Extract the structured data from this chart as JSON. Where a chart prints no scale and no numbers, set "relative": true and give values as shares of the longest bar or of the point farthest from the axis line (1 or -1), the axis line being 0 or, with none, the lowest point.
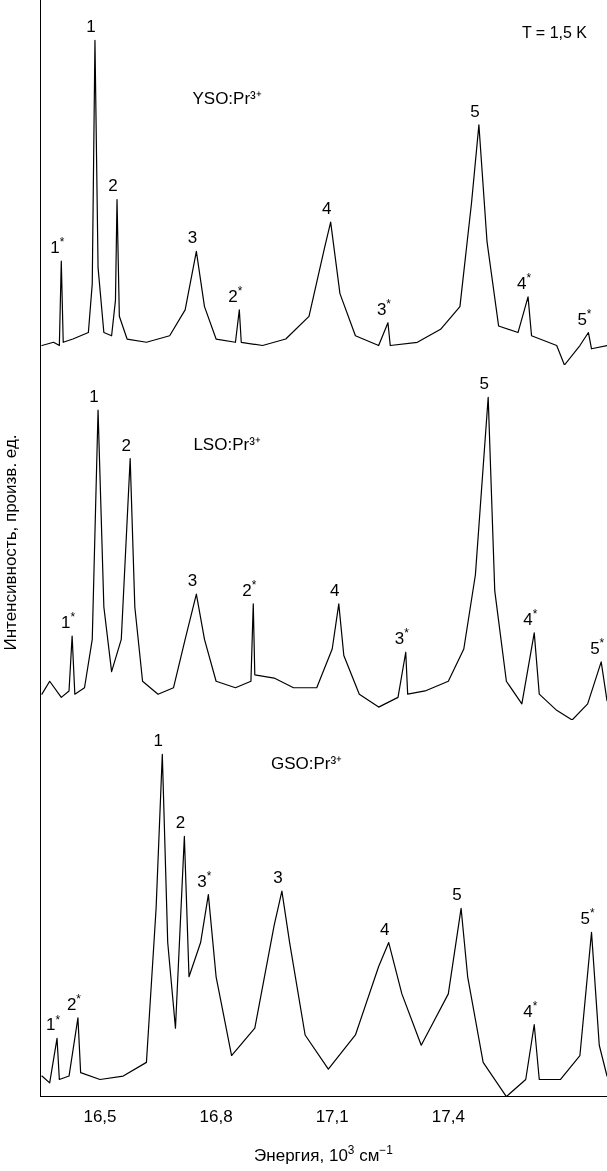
{
  "chart_data": [
    {
      "type": "line",
      "title": "YSO:Pr³⁺",
      "relative": true,
      "tick_labels": false,
      "grid": false,
      "legend": false,
      "marker": "none",
      "line_style": "solid",
      "xlim": [
        16.345,
        17.81
      ],
      "annotations": [
        "T = 1,5 K",
        {
          "text": "1*",
          "x": 16.4,
          "y": 0.32
        },
        {
          "text": "1",
          "x": 16.487,
          "y": 1.0
        },
        {
          "text": "2",
          "x": 16.544,
          "y": 0.51
        },
        {
          "text": "3",
          "x": 16.749,
          "y": 0.35
        },
        {
          "text": "2*",
          "x": 16.86,
          "y": 0.17
        },
        {
          "text": "4",
          "x": 17.096,
          "y": 0.44
        },
        {
          "text": "3*",
          "x": 17.244,
          "y": 0.13
        },
        {
          "text": "5",
          "x": 17.479,
          "y": 0.74
        },
        {
          "text": "4*",
          "x": 17.606,
          "y": 0.21
        },
        {
          "text": "5*",
          "x": 17.762,
          "y": 0.1
        }
      ],
      "series": [
        {
          "color": "#000000",
          "x": [
            16.35,
            16.38,
            16.395,
            16.4,
            16.405,
            16.43,
            16.47,
            16.48,
            16.487,
            16.495,
            16.51,
            16.53,
            16.54,
            16.544,
            16.55,
            16.57,
            16.62,
            16.68,
            16.72,
            16.749,
            16.77,
            16.8,
            16.85,
            16.86,
            16.865,
            16.92,
            16.98,
            17.04,
            17.08,
            17.096,
            17.12,
            17.16,
            17.22,
            17.244,
            17.25,
            17.32,
            17.38,
            17.43,
            17.46,
            17.479,
            17.5,
            17.53,
            17.58,
            17.606,
            17.615,
            17.68,
            17.7,
            17.74,
            17.762,
            17.77,
            17.81
          ],
          "values": [
            0.06,
            0.07,
            0.06,
            0.32,
            0.07,
            0.08,
            0.1,
            0.25,
            1.0,
            0.3,
            0.1,
            0.09,
            0.2,
            0.51,
            0.15,
            0.08,
            0.07,
            0.09,
            0.17,
            0.35,
            0.18,
            0.08,
            0.07,
            0.17,
            0.07,
            0.06,
            0.08,
            0.15,
            0.36,
            0.44,
            0.22,
            0.09,
            0.06,
            0.13,
            0.06,
            0.07,
            0.11,
            0.18,
            0.5,
            0.74,
            0.38,
            0.12,
            0.1,
            0.21,
            0.09,
            0.06,
            0.0,
            0.06,
            0.1,
            0.05,
            0.06
          ]
        }
      ]
    },
    {
      "type": "line",
      "title": "LSO:Pr³⁺",
      "ylabel": "Интенсивность, произв. ед.",
      "relative": true,
      "tick_labels": false,
      "grid": false,
      "legend": false,
      "marker": "none",
      "line_style": "solid",
      "xlim": [
        16.345,
        17.81
      ],
      "annotations": [
        {
          "text": "1*",
          "x": 16.428,
          "y": 0.26
        },
        {
          "text": "1",
          "x": 16.495,
          "y": 0.96
        },
        {
          "text": "2",
          "x": 16.578,
          "y": 0.81
        },
        {
          "text": "3",
          "x": 16.749,
          "y": 0.39
        },
        {
          "text": "2*",
          "x": 16.896,
          "y": 0.36
        },
        {
          "text": "4",
          "x": 17.117,
          "y": 0.36
        },
        {
          "text": "3*",
          "x": 17.29,
          "y": 0.21
        },
        {
          "text": "5",
          "x": 17.503,
          "y": 1.0
        },
        {
          "text": "4*",
          "x": 17.622,
          "y": 0.27
        },
        {
          "text": "5*",
          "x": 17.795,
          "y": 0.18
        }
      ],
      "series": [
        {
          "color": "#000000",
          "x": [
            16.35,
            16.37,
            16.4,
            16.42,
            16.428,
            16.435,
            16.46,
            16.48,
            16.495,
            16.51,
            16.53,
            16.555,
            16.578,
            16.59,
            16.61,
            16.65,
            16.69,
            16.72,
            16.749,
            16.77,
            16.8,
            16.85,
            16.89,
            16.896,
            16.9,
            16.95,
            17.0,
            17.06,
            17.1,
            17.117,
            17.13,
            17.17,
            17.22,
            17.27,
            17.29,
            17.295,
            17.34,
            17.4,
            17.44,
            17.47,
            17.503,
            17.52,
            17.55,
            17.59,
            17.622,
            17.635,
            17.68,
            17.72,
            17.76,
            17.795,
            17.81
          ],
          "values": [
            0.08,
            0.12,
            0.07,
            0.09,
            0.26,
            0.08,
            0.1,
            0.25,
            0.96,
            0.35,
            0.15,
            0.25,
            0.81,
            0.35,
            0.12,
            0.08,
            0.1,
            0.25,
            0.39,
            0.25,
            0.12,
            0.1,
            0.12,
            0.36,
            0.14,
            0.13,
            0.1,
            0.1,
            0.22,
            0.36,
            0.2,
            0.08,
            0.04,
            0.07,
            0.21,
            0.08,
            0.09,
            0.12,
            0.22,
            0.45,
            1.0,
            0.4,
            0.12,
            0.05,
            0.27,
            0.08,
            0.03,
            0.0,
            0.05,
            0.18,
            0.06
          ]
        }
      ]
    },
    {
      "type": "line",
      "title": "GSO:Pr³⁺",
      "xlabel": "Энергия, 10$^{3}$ см$^{−1}$",
      "relative": true,
      "tick_labels": "x",
      "grid": false,
      "legend": false,
      "marker": "none",
      "line_style": "solid",
      "xlim": [
        16.345,
        17.81
      ],
      "xticks": [
        {
          "value": 16.5,
          "label": "16,5"
        },
        {
          "value": 16.8,
          "label": "16,8"
        },
        {
          "value": 17.1,
          "label": "17,1"
        },
        {
          "value": 17.4,
          "label": "17,4"
        }
      ],
      "annotations": [
        {
          "text": "1*",
          "x": 16.389,
          "y": 0.17
        },
        {
          "text": "2*",
          "x": 16.443,
          "y": 0.23
        },
        {
          "text": "1",
          "x": 16.661,
          "y": 1.0
        },
        {
          "text": "2",
          "x": 16.718,
          "y": 0.76
        },
        {
          "text": "3*",
          "x": 16.78,
          "y": 0.59
        },
        {
          "text": "3",
          "x": 16.97,
          "y": 0.6
        },
        {
          "text": "4",
          "x": 17.246,
          "y": 0.45
        },
        {
          "text": "5",
          "x": 17.433,
          "y": 0.55
        },
        {
          "text": "4*",
          "x": 17.622,
          "y": 0.21
        },
        {
          "text": "5*",
          "x": 17.77,
          "y": 0.48
        }
      ],
      "series": [
        {
          "color": "#000000",
          "x": [
            16.35,
            16.37,
            16.389,
            16.395,
            16.42,
            16.443,
            16.45,
            16.5,
            16.56,
            16.62,
            16.645,
            16.661,
            16.675,
            16.695,
            16.718,
            16.73,
            16.76,
            16.78,
            16.8,
            16.84,
            16.9,
            16.95,
            16.97,
            16.99,
            17.03,
            17.09,
            17.16,
            17.22,
            17.246,
            17.28,
            17.33,
            17.4,
            17.433,
            17.45,
            17.49,
            17.55,
            17.6,
            17.622,
            17.635,
            17.69,
            17.74,
            17.77,
            17.79,
            17.81
          ],
          "values": [
            0.06,
            0.04,
            0.17,
            0.05,
            0.06,
            0.23,
            0.07,
            0.05,
            0.06,
            0.1,
            0.55,
            1.0,
            0.45,
            0.2,
            0.76,
            0.35,
            0.45,
            0.59,
            0.35,
            0.12,
            0.2,
            0.5,
            0.6,
            0.45,
            0.18,
            0.08,
            0.18,
            0.38,
            0.45,
            0.3,
            0.15,
            0.3,
            0.55,
            0.35,
            0.1,
            0.0,
            0.05,
            0.21,
            0.05,
            0.05,
            0.12,
            0.48,
            0.15,
            0.06
          ]
        }
      ]
    }
  ]
}
